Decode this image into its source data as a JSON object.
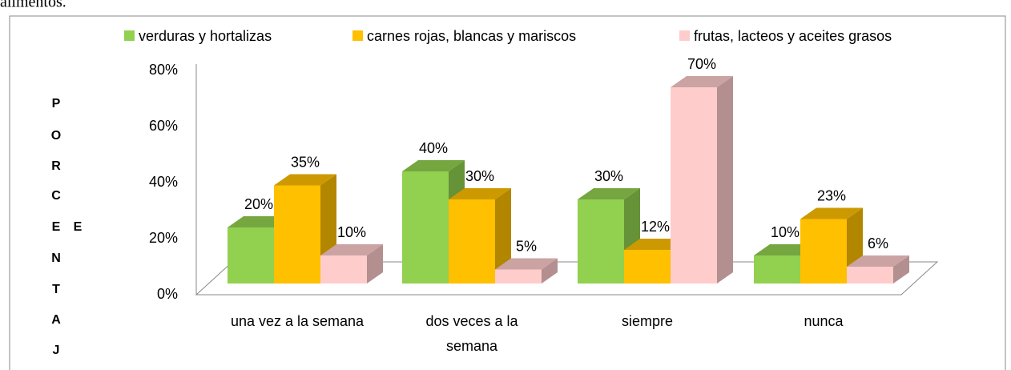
{
  "caption_fragment": "alimentos.",
  "chart_data": {
    "type": "bar3d",
    "ylabel_letters": [
      "P",
      "O",
      "R",
      "C",
      "E",
      "N",
      "T",
      "A",
      "J",
      "E"
    ],
    "categories": [
      "una vez a la semana",
      "dos veces a la semana",
      "siempre",
      "nunca"
    ],
    "series": [
      {
        "name": "verduras y hortalizas",
        "color": "#92d050",
        "values": [
          20,
          40,
          30,
          10
        ],
        "value_labels": [
          "20%",
          "40%",
          "30%",
          "10%"
        ]
      },
      {
        "name": "carnes rojas, blancas y mariscos",
        "color": "#ffc000",
        "values": [
          35,
          30,
          12,
          23
        ],
        "value_labels": [
          "35%",
          "30%",
          "12%",
          "23%"
        ]
      },
      {
        "name": "frutas, lacteos y aceites grasos",
        "color": "#ffcccc",
        "values": [
          10,
          5,
          70,
          6
        ],
        "value_labels": [
          "10%",
          "5%",
          "70%",
          "6%"
        ]
      }
    ],
    "ylim": [
      0,
      80
    ],
    "yticks": [
      {
        "value": 0,
        "label": "0%"
      },
      {
        "value": 20,
        "label": "20%"
      },
      {
        "value": 40,
        "label": "40%"
      },
      {
        "value": 60,
        "label": "60%"
      },
      {
        "value": 80,
        "label": "80%"
      }
    ],
    "legend": "top"
  }
}
